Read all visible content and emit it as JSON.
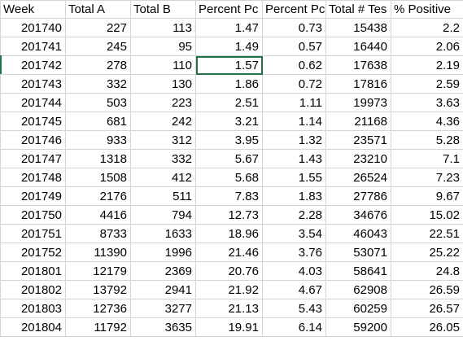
{
  "table": {
    "header": [
      "Week",
      "Total A",
      "Total B",
      "Percent Pc",
      "Percent Pc",
      "Total # Tes",
      "% Positive"
    ],
    "rows": [
      [
        "201740",
        "227",
        "113",
        "1.47",
        "0.73",
        "15438",
        "2.2"
      ],
      [
        "201741",
        "245",
        "95",
        "1.49",
        "0.57",
        "16440",
        "2.06"
      ],
      [
        "201742",
        "278",
        "110",
        "1.57",
        "0.62",
        "17638",
        "2.19"
      ],
      [
        "201743",
        "332",
        "130",
        "1.86",
        "0.72",
        "17816",
        "2.59"
      ],
      [
        "201744",
        "503",
        "223",
        "2.51",
        "1.11",
        "19973",
        "3.63"
      ],
      [
        "201745",
        "681",
        "242",
        "3.21",
        "1.14",
        "21168",
        "4.36"
      ],
      [
        "201746",
        "933",
        "312",
        "3.95",
        "1.32",
        "23571",
        "5.28"
      ],
      [
        "201747",
        "1318",
        "332",
        "5.67",
        "1.43",
        "23210",
        "7.1"
      ],
      [
        "201748",
        "1508",
        "412",
        "5.68",
        "1.55",
        "26524",
        "7.23"
      ],
      [
        "201749",
        "2176",
        "511",
        "7.83",
        "1.83",
        "27786",
        "9.67"
      ],
      [
        "201750",
        "4416",
        "794",
        "12.73",
        "2.28",
        "34676",
        "15.02"
      ],
      [
        "201751",
        "8733",
        "1633",
        "18.96",
        "3.54",
        "46043",
        "22.51"
      ],
      [
        "201752",
        "11390",
        "1996",
        "21.46",
        "3.76",
        "53071",
        "25.22"
      ],
      [
        "201801",
        "12179",
        "2369",
        "20.76",
        "4.03",
        "58641",
        "24.8"
      ],
      [
        "201802",
        "13792",
        "2941",
        "21.92",
        "4.67",
        "62908",
        "26.59"
      ],
      [
        "201803",
        "12736",
        "3277",
        "21.13",
        "5.43",
        "60259",
        "26.57"
      ],
      [
        "201804",
        "11792",
        "3635",
        "19.91",
        "6.14",
        "59200",
        "26.05"
      ]
    ]
  }
}
